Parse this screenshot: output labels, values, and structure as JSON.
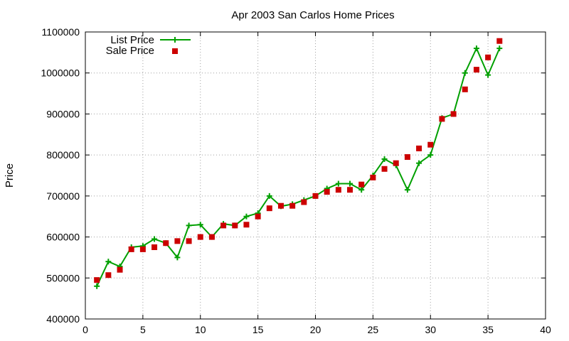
{
  "chart_data": {
    "type": "line",
    "title": "Apr 2003 San Carlos Home Prices",
    "xlabel": "",
    "ylabel": "Price",
    "xlim": [
      0,
      40
    ],
    "ylim": [
      400000,
      1100000
    ],
    "xticks": [
      0,
      5,
      10,
      15,
      20,
      25,
      30,
      35,
      40
    ],
    "yticks": [
      400000,
      500000,
      600000,
      700000,
      800000,
      900000,
      1000000,
      1100000
    ],
    "xtick_labels": [
      "0",
      "5",
      "10",
      "15",
      "20",
      "25",
      "30",
      "35",
      "40"
    ],
    "ytick_labels": [
      "400000",
      "500000",
      "600000",
      "700000",
      "800000",
      "900000",
      "1000000",
      "1100000"
    ],
    "grid": true,
    "legend_position": "top-left",
    "colors": {
      "list": "#00a000",
      "sale": "#cc0000"
    },
    "series": [
      {
        "name": "List Price",
        "style": "line-plus",
        "x": [
          1,
          2,
          3,
          4,
          5,
          6,
          7,
          8,
          9,
          10,
          11,
          12,
          13,
          14,
          15,
          16,
          17,
          18,
          19,
          20,
          21,
          22,
          23,
          24,
          25,
          26,
          27,
          28,
          29,
          30,
          31,
          32,
          33,
          34,
          35,
          36
        ],
        "values": [
          480000,
          540000,
          528000,
          575000,
          578000,
          595000,
          585000,
          550000,
          628000,
          630000,
          600000,
          632000,
          628000,
          650000,
          658000,
          700000,
          675000,
          680000,
          690000,
          700000,
          718000,
          730000,
          730000,
          715000,
          750000,
          790000,
          775000,
          715000,
          780000,
          800000,
          890000,
          900000,
          1000000,
          1060000,
          995000,
          1060000
        ]
      },
      {
        "name": "Sale Price",
        "style": "square-points",
        "x": [
          1,
          2,
          3,
          4,
          5,
          6,
          7,
          8,
          9,
          10,
          11,
          12,
          13,
          14,
          15,
          16,
          17,
          18,
          19,
          20,
          21,
          22,
          23,
          24,
          25,
          26,
          27,
          28,
          29,
          30,
          31,
          32,
          33,
          34,
          35,
          36
        ],
        "values": [
          495000,
          507000,
          520000,
          570000,
          570000,
          575000,
          585000,
          590000,
          590000,
          600000,
          600000,
          628000,
          628000,
          630000,
          650000,
          670000,
          676000,
          676000,
          685000,
          700000,
          710000,
          715000,
          715000,
          728000,
          745000,
          766000,
          780000,
          795000,
          816000,
          825000,
          888000,
          900000,
          960000,
          1008000,
          1038000,
          1078000
        ]
      }
    ]
  }
}
